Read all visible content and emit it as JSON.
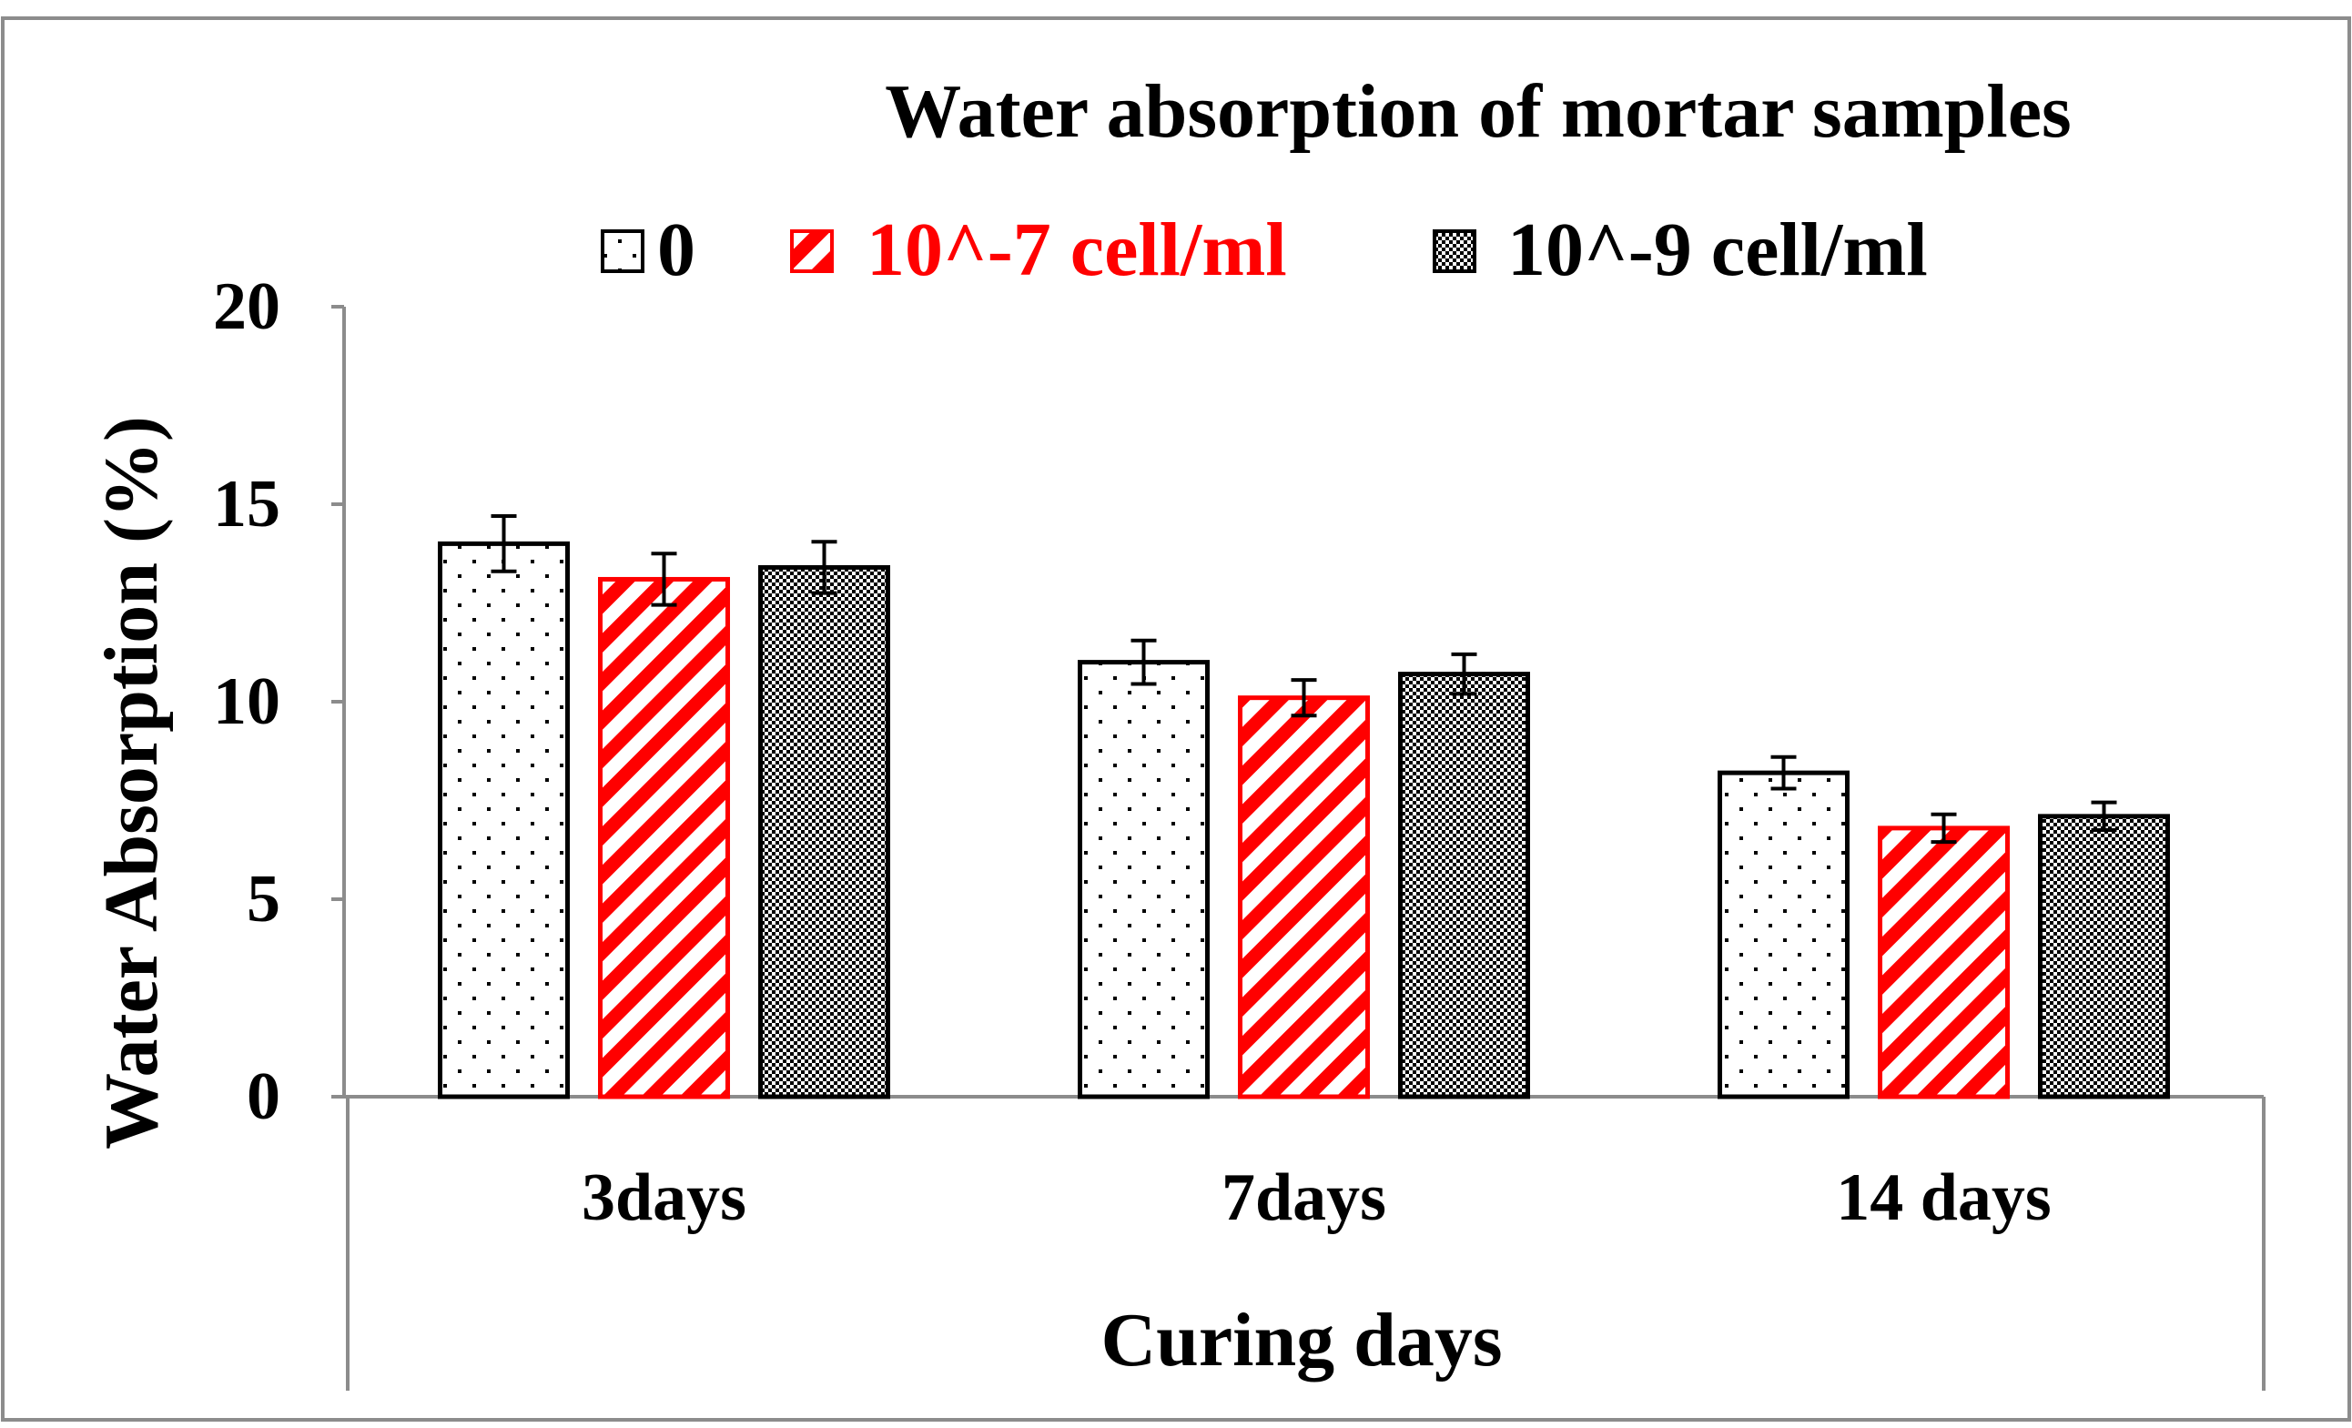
{
  "colors": {
    "frame": "#8c8c8c",
    "axis": "#8c8c8c",
    "text": "#000000",
    "accent_red": "#ff0000",
    "bar_fill": "#ffffff"
  },
  "chart_data": {
    "type": "bar",
    "title": "Water absorption of mortar samples",
    "xlabel": "Curing days",
    "ylabel": "Water Absorption (%)",
    "ylim": [
      0,
      20
    ],
    "yticks": [
      "0",
      "5",
      "10",
      "15",
      "20"
    ],
    "grid": false,
    "legend_position": "top",
    "categories": [
      "3days",
      "7days",
      "14 days"
    ],
    "series": [
      {
        "name": "0",
        "pattern": "dots",
        "color": "#000000",
        "label_color": "#000000",
        "values": [
          14.0,
          11.0,
          8.2
        ],
        "errors": [
          0.7,
          0.55,
          0.4
        ]
      },
      {
        "name": "10^-7 cell/ml",
        "pattern": "diagonal",
        "color": "#ff0000",
        "label_color": "#ff0000",
        "values": [
          13.1,
          10.1,
          6.8
        ],
        "errors": [
          0.65,
          0.45,
          0.35
        ]
      },
      {
        "name": "10^-9 cell/ml",
        "pattern": "checker",
        "color": "#000000",
        "label_color": "#000000",
        "values": [
          13.4,
          10.7,
          7.1
        ],
        "errors": [
          0.65,
          0.5,
          0.35
        ]
      }
    ]
  }
}
